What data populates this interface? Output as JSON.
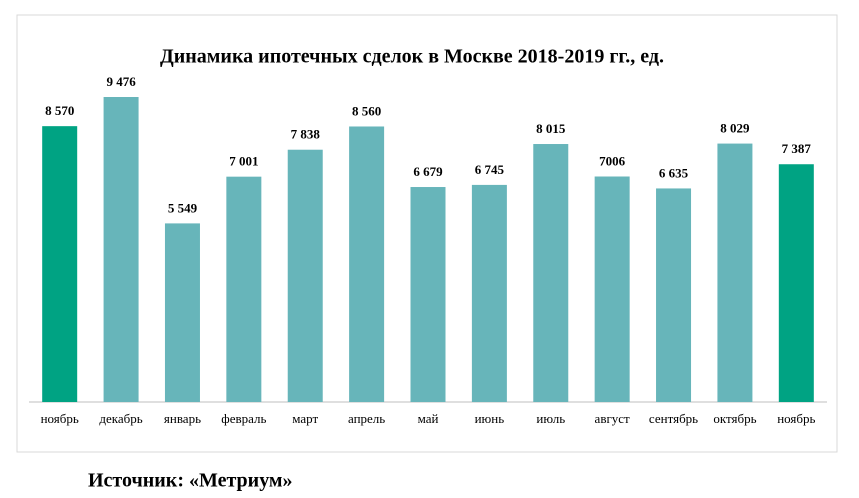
{
  "chart_data": {
    "type": "bar",
    "title": "Динамика ипотечных сделок в Москве 2018-2019 гг., ед.",
    "categories": [
      "ноябрь",
      "декабрь",
      "январь",
      "февраль",
      "март",
      "апрель",
      "май",
      "июнь",
      "июль",
      "август",
      "сентябрь",
      "октябрь",
      "ноябрь"
    ],
    "values": [
      8570,
      9476,
      5549,
      7001,
      7838,
      8560,
      6679,
      6745,
      8015,
      7006,
      6635,
      8029,
      7387
    ],
    "value_labels": [
      "8 570",
      "9 476",
      "5 549",
      "7 001",
      "7 838",
      "8 560",
      "6 679",
      "6 745",
      "8 015",
      "7006",
      "6 635",
      "8 029",
      "7 387"
    ],
    "colors": [
      "#00a383",
      "#67b5ba",
      "#67b5ba",
      "#67b5ba",
      "#67b5ba",
      "#67b5ba",
      "#67b5ba",
      "#67b5ba",
      "#67b5ba",
      "#67b5ba",
      "#67b5ba",
      "#67b5ba",
      "#00a383"
    ]
  },
  "source": "Источник: «Метриум»"
}
